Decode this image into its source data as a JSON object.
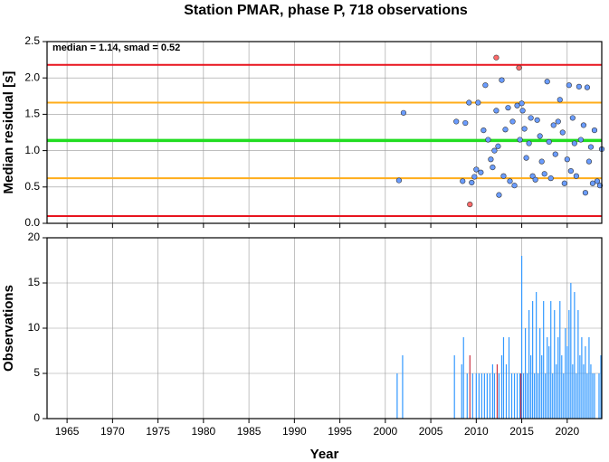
{
  "chart_data": [
    {
      "type": "scatter",
      "title": "Station PMAR, phase P, 718 observations",
      "ylabel": "Median residual [s]",
      "annotation": "median = 1.14, smad = 0.52",
      "xlim": [
        1962.8,
        2023.8
      ],
      "xticks": [
        1965,
        1970,
        1975,
        1980,
        1985,
        1990,
        1995,
        2000,
        2005,
        2010,
        2015,
        2020
      ],
      "ylim": [
        0,
        2.5
      ],
      "yticks": [
        {
          "value": 0,
          "label": "0.0"
        },
        0.5,
        {
          "value": 1,
          "label": "1.0"
        },
        1.5,
        {
          "value": 2,
          "label": "2.0"
        },
        2.5
      ],
      "grid": true,
      "hlines": [
        {
          "value": 0.1,
          "color": "#e8141e"
        },
        {
          "value": 0.62,
          "color": "#ffad1a"
        },
        {
          "value": 1.14,
          "color": "#22dd22"
        },
        {
          "value": 1.66,
          "color": "#ffad1a"
        },
        {
          "value": 2.18,
          "color": "#e8141e"
        }
      ],
      "series": [
        {
          "color": "#6a9cff",
          "x": [
            2001.5,
            2002.0,
            2007.8,
            2008.5,
            2008.8,
            2009.2,
            2009.5,
            2009.8,
            2010.0,
            2010.2,
            2010.5,
            2010.8,
            2011.0,
            2011.3,
            2011.6,
            2011.8,
            2012.0,
            2012.2,
            2012.4,
            2012.5,
            2012.8,
            2013.0,
            2013.2,
            2013.5,
            2013.7,
            2014.0,
            2014.2,
            2014.5,
            2014.8,
            2015.0,
            2015.1,
            2015.3,
            2015.5,
            2015.8,
            2016.0,
            2016.2,
            2016.5,
            2016.7,
            2017.0,
            2017.2,
            2017.5,
            2017.8,
            2018.0,
            2018.2,
            2018.5,
            2018.7,
            2019.0,
            2019.2,
            2019.5,
            2019.7,
            2020.0,
            2020.2,
            2020.4,
            2020.6,
            2020.8,
            2021.0,
            2021.3,
            2021.5,
            2021.8,
            2022.0,
            2022.2,
            2022.4,
            2022.6,
            2022.8,
            2023.0,
            2023.3,
            2023.6,
            2023.8
          ],
          "values": [
            0.59,
            1.52,
            1.4,
            0.58,
            1.38,
            1.66,
            0.56,
            0.64,
            0.74,
            1.66,
            0.7,
            1.28,
            1.9,
            1.15,
            0.88,
            0.77,
            1.0,
            1.55,
            1.06,
            0.39,
            1.97,
            0.65,
            1.29,
            1.59,
            0.58,
            1.4,
            0.52,
            1.62,
            1.15,
            1.65,
            1.55,
            1.3,
            0.9,
            1.1,
            1.45,
            0.65,
            0.6,
            1.42,
            1.2,
            0.85,
            0.68,
            1.95,
            1.12,
            0.62,
            1.35,
            0.95,
            1.4,
            1.7,
            1.25,
            0.55,
            0.88,
            1.9,
            0.72,
            1.45,
            1.1,
            0.65,
            1.88,
            1.15,
            1.35,
            0.42,
            1.87,
            0.85,
            1.05,
            0.55,
            1.28,
            0.58,
            0.52,
            1.02
          ]
        },
        {
          "color": "#ff6a6a",
          "x": [
            2009.3,
            2012.2,
            2014.7
          ],
          "values": [
            0.26,
            2.28,
            2.14
          ]
        }
      ]
    },
    {
      "type": "bar",
      "ylabel": "Observations",
      "xlabel": "Year",
      "xlim": [
        1962.8,
        2023.8
      ],
      "xticks": [
        1965,
        1970,
        1975,
        1980,
        1985,
        1990,
        1995,
        2000,
        2005,
        2010,
        2015,
        2020
      ],
      "ylim": [
        0,
        20
      ],
      "yticks": [
        0,
        5,
        10,
        15,
        20
      ],
      "grid": true,
      "series": [
        {
          "color": "#3399ff",
          "x": [
            2001.3,
            2001.9,
            2007.6,
            2008.4,
            2008.6,
            2009.0,
            2009.6,
            2010.0,
            2010.3,
            2010.6,
            2010.9,
            2011.2,
            2011.5,
            2011.8,
            2012.0,
            2012.5,
            2012.8,
            2013.0,
            2013.3,
            2013.6,
            2013.9,
            2014.2,
            2014.5,
            2014.8,
            2015.0,
            2015.2,
            2015.4,
            2015.6,
            2015.8,
            2016.0,
            2016.2,
            2016.4,
            2016.6,
            2016.8,
            2017.0,
            2017.2,
            2017.4,
            2017.6,
            2017.8,
            2018.0,
            2018.2,
            2018.4,
            2018.6,
            2018.8,
            2019.0,
            2019.2,
            2019.4,
            2019.6,
            2019.8,
            2020.0,
            2020.2,
            2020.4,
            2020.6,
            2020.8,
            2021.0,
            2021.2,
            2021.4,
            2021.6,
            2021.8,
            2022.0,
            2022.2,
            2022.4,
            2022.6,
            2022.8,
            2023.0,
            2023.5,
            2023.7
          ],
          "values": [
            5,
            7,
            7,
            6,
            9,
            5,
            5,
            5,
            5,
            5,
            5,
            5,
            5,
            6,
            5,
            5,
            7,
            9,
            6,
            9,
            5,
            5,
            5,
            5,
            18,
            5,
            10,
            5,
            12,
            7,
            13,
            5,
            14,
            5,
            10,
            7,
            13,
            5,
            9,
            8,
            13,
            5,
            12,
            6,
            9,
            13,
            7,
            5,
            10,
            8,
            12,
            15,
            6,
            14,
            5,
            12,
            7,
            9,
            6,
            8,
            5,
            9,
            6,
            5,
            5,
            5,
            7
          ]
        },
        {
          "color": "#cc3344",
          "x": [
            2009.3,
            2012.3,
            2014.9
          ],
          "values": [
            7,
            6,
            5
          ]
        }
      ]
    }
  ]
}
